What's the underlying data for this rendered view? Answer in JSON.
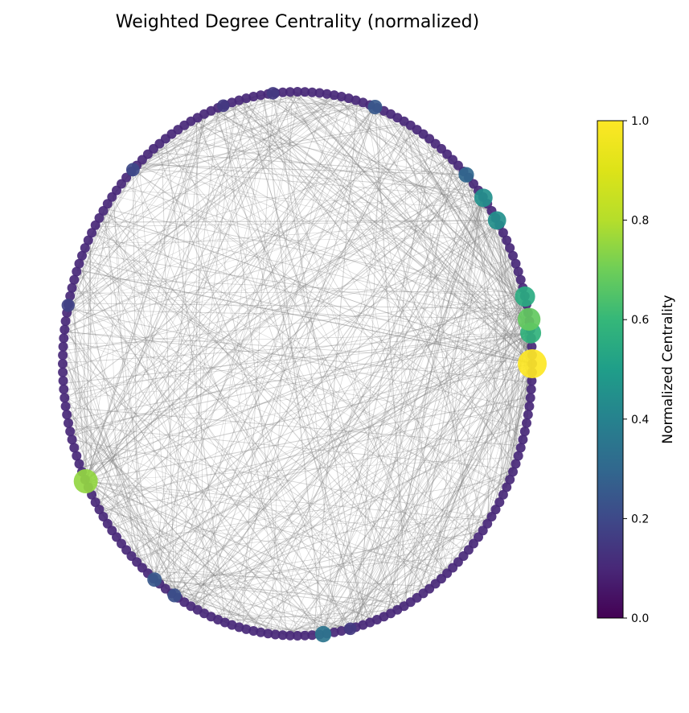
{
  "chart_data": {
    "type": "network",
    "title": "Weighted Degree Centrality (normalized)",
    "layout": "circular",
    "colormap": "viridis",
    "colorbar": {
      "label": "Normalized Centrality",
      "range": [
        0.0,
        1.0
      ],
      "ticks": [
        "0.0",
        "0.2",
        "0.4",
        "0.6",
        "0.8",
        "1.0"
      ]
    },
    "node_count": 200,
    "baseline_centrality": 0.1,
    "highlighted_nodes": [
      {
        "angle_deg": 0,
        "centrality": 1.0
      },
      {
        "angle_deg": 6.5,
        "centrality": 0.58
      },
      {
        "angle_deg": 9.4,
        "centrality": 0.68
      },
      {
        "angle_deg": 14.3,
        "centrality": 0.55
      },
      {
        "angle_deg": 31.8,
        "centrality": 0.45
      },
      {
        "angle_deg": 37.6,
        "centrality": 0.45
      },
      {
        "angle_deg": 44,
        "centrality": 0.3
      },
      {
        "angle_deg": 70.7,
        "centrality": 0.25
      },
      {
        "angle_deg": 96,
        "centrality": 0.15
      },
      {
        "angle_deg": 108.4,
        "centrality": 0.15
      },
      {
        "angle_deg": 134.5,
        "centrality": 0.2
      },
      {
        "angle_deg": 167.6,
        "centrality": 0.18
      },
      {
        "angle_deg": 205.6,
        "centrality": 0.75
      },
      {
        "angle_deg": 232.5,
        "centrality": 0.25
      },
      {
        "angle_deg": 238.4,
        "centrality": 0.22
      },
      {
        "angle_deg": 276.3,
        "centrality": 0.35
      },
      {
        "angle_deg": 283,
        "centrality": 0.15
      }
    ],
    "edge_color": "#808080",
    "edge_alpha": 0.35
  }
}
